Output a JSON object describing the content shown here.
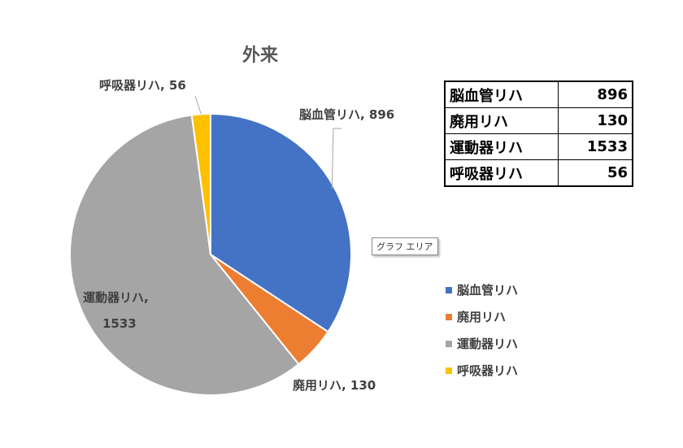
{
  "chart_data": {
    "type": "pie",
    "title": "外来",
    "categories": [
      "脳血管リハ",
      "廃用リハ",
      "運動器リハ",
      "呼吸器リハ"
    ],
    "values": [
      896,
      130,
      1533,
      56
    ],
    "colors": [
      "#4472C4",
      "#ED7D31",
      "#A5A5A5",
      "#FFC000"
    ],
    "data_labels": [
      {
        "line1": "脳血管リハ, 896",
        "line2": ""
      },
      {
        "line1": "廃用リハ, 130",
        "line2": ""
      },
      {
        "line1": "運動器リハ,",
        "line2": "1533"
      },
      {
        "line1": "呼吸器リハ, 56",
        "line2": ""
      }
    ],
    "legend": [
      "脳血管リハ",
      "廃用リハ",
      "運動器リハ",
      "呼吸器リハ"
    ],
    "legend_position": "right"
  },
  "tooltip": "グラフ エリア",
  "table": {
    "rows": [
      {
        "label": "脳血管リハ",
        "value": "896"
      },
      {
        "label": "廃用リハ",
        "value": "130"
      },
      {
        "label": "運動器リハ",
        "value": "1533"
      },
      {
        "label": "呼吸器リハ",
        "value": "56"
      }
    ]
  }
}
